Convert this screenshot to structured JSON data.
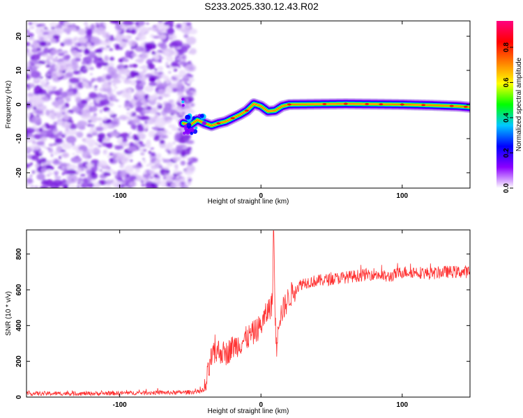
{
  "page": {
    "title": "S233.2025.330.12.43.R02"
  },
  "chart_data": [
    {
      "type": "heatmap",
      "xlabel": "Height of straight line (km)",
      "ylabel": "Frequency (Hz)",
      "xlim": [
        -166,
        148
      ],
      "ylim": [
        -24.5,
        24.5
      ],
      "xticks": [
        -100,
        0,
        100
      ],
      "yticks": [
        -20,
        -10,
        0,
        10,
        20
      ],
      "ridge": {
        "x": [
          -55,
          -50,
          -45,
          -40,
          -35,
          -30,
          -25,
          -20,
          -15,
          -10,
          -5,
          0,
          5,
          10,
          15,
          20,
          40,
          60,
          80,
          100,
          120,
          140,
          148
        ],
        "y": [
          -5.5,
          -6.0,
          -4.5,
          -5.5,
          -6.2,
          -5.5,
          -5.0,
          -4.0,
          -3.0,
          -1.8,
          0.2,
          -0.5,
          -2.0,
          -1.8,
          -0.5,
          0.0,
          0.1,
          0.2,
          0.1,
          0.0,
          -0.2,
          -0.5,
          -0.8
        ]
      },
      "colorbar": {
        "label": "Normalized spectral amplitude",
        "range": [
          0,
          0.95
        ],
        "ticks": [
          "0.0",
          "0.2",
          "0.4",
          "0.6",
          "0.8"
        ],
        "tick_values": [
          0,
          0.2,
          0.4,
          0.6,
          0.8
        ],
        "colors": [
          "#ffffff",
          "#8b00ff",
          "#0000ff",
          "#00c8ff",
          "#00ff00",
          "#ffff00",
          "#ff8000",
          "#ff0000",
          "#ff0080"
        ]
      },
      "grid": false
    },
    {
      "type": "line",
      "xlabel": "Height of straight line (km)",
      "ylabel": "SNR (10 * v/v)",
      "xlim": [
        -166,
        148
      ],
      "ylim": [
        0,
        935
      ],
      "xticks": [
        -100,
        0,
        100
      ],
      "yticks": [
        0,
        200,
        400,
        600,
        800
      ],
      "series_color": "#ff3030",
      "series": [
        {
          "x": [
            -166,
            -140,
            -120,
            -100,
            -80,
            -60,
            -45,
            -40,
            -35,
            -30,
            -25,
            -20,
            -15,
            -10,
            -5,
            0,
            3,
            6,
            8,
            9,
            10,
            11,
            12,
            15,
            20,
            25,
            30,
            40,
            50,
            60,
            70,
            80,
            90,
            100,
            110,
            120,
            130,
            140,
            148
          ],
          "values": [
            20,
            20,
            20,
            22,
            25,
            25,
            30,
            35,
            220,
            260,
            240,
            280,
            300,
            330,
            360,
            400,
            450,
            500,
            520,
            930,
            480,
            250,
            420,
            480,
            560,
            610,
            640,
            650,
            660,
            670,
            680,
            690,
            670,
            700,
            700,
            690,
            700,
            700,
            700
          ]
        }
      ],
      "grid": false
    }
  ]
}
